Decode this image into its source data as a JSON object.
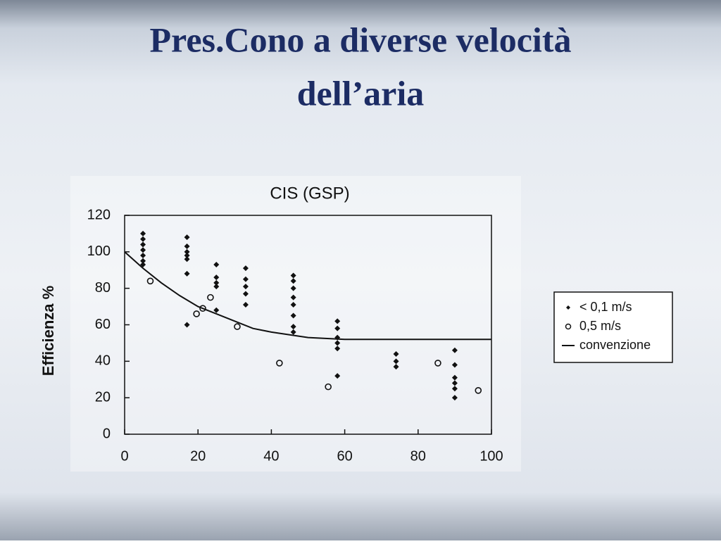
{
  "slide": {
    "title_lines": [
      "Pres.Cono a diverse velocità",
      "dell’aria"
    ]
  },
  "chart_data": {
    "type": "scatter",
    "title": "CIS  (GSP)",
    "y_label": "Efficienza %",
    "xlim": [
      0,
      100
    ],
    "ylim": [
      0,
      120
    ],
    "xticks": [
      0,
      20,
      40,
      60,
      80,
      100
    ],
    "yticks": [
      0,
      20,
      40,
      60,
      80,
      100,
      120
    ],
    "legend": "right",
    "series": [
      {
        "name": "< 0,1 m/s",
        "style": "diamond",
        "color": "#111111",
        "x": [
          5,
          5,
          5,
          5,
          5,
          5,
          5,
          17,
          17,
          17,
          17,
          17,
          17,
          17,
          25,
          25,
          25,
          25,
          25,
          33,
          33,
          33,
          33,
          33,
          46,
          46,
          46,
          46,
          46,
          46,
          46,
          46,
          58,
          58,
          58,
          58,
          58,
          58,
          74,
          74,
          74,
          90,
          90,
          90,
          90,
          90,
          90
        ],
        "values": [
          110,
          107,
          104,
          101,
          98,
          95,
          93,
          108,
          103,
          100,
          98,
          96,
          88,
          60,
          93,
          86,
          83,
          81,
          68,
          91,
          85,
          81,
          77,
          71,
          87,
          84,
          80,
          75,
          71,
          65,
          59,
          56,
          62,
          58,
          53,
          50,
          47,
          32,
          44,
          40,
          37,
          46,
          38,
          31,
          28,
          25,
          20
        ]
      },
      {
        "name": "0,5 m/s",
        "style": "circle",
        "color": "#111111",
        "x": [
          7,
          19.6,
          21.3,
          23.4,
          30.7,
          42.2,
          55.5,
          85.4,
          96.4
        ],
        "values": [
          84,
          66,
          69,
          75,
          59,
          39,
          26,
          39,
          24
        ]
      },
      {
        "name": "convenzione",
        "style": "line",
        "color": "#111111",
        "x": [
          0,
          5,
          10,
          15,
          20,
          25,
          30,
          35,
          40,
          50,
          60,
          70,
          80,
          100
        ],
        "values": [
          100,
          91,
          83,
          76,
          70,
          66,
          62,
          58,
          56,
          53,
          52,
          52,
          52,
          52
        ]
      }
    ]
  }
}
